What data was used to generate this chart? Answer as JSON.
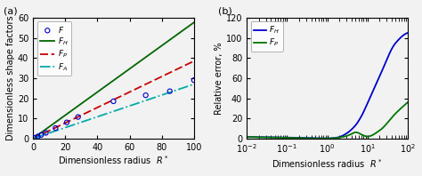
{
  "panel_a": {
    "title": "(a)",
    "xlabel": "Dimensionless radius  $R^*$",
    "ylabel": "Dimensionless shape factors",
    "xlim": [
      0,
      100
    ],
    "ylim": [
      0,
      60
    ],
    "yticks": [
      0,
      10,
      20,
      30,
      40,
      50,
      60
    ],
    "xticks": [
      0,
      20,
      40,
      60,
      80,
      100
    ],
    "F_color": "#0000cc",
    "FH_color": "#006600",
    "FP_color": "#cc0000",
    "FA_color": "#00aaaa",
    "FH_slope": 0.577,
    "FP_slope": 0.385,
    "FA_slope": 0.27,
    "scatter_x": [
      1,
      3,
      5,
      8,
      14,
      21,
      28,
      50,
      70,
      85,
      100
    ],
    "scatter_y": [
      0.38,
      1.0,
      1.7,
      2.8,
      5.2,
      8.0,
      10.7,
      18.5,
      21.5,
      23.5,
      29.0
    ]
  },
  "panel_b": {
    "title": "(b)",
    "xlabel": "Dimensionless radius  $R^*$",
    "ylabel": "Relative error, %",
    "xlim_log": [
      -2,
      2
    ],
    "ylim": [
      0,
      120
    ],
    "yticks": [
      0,
      20,
      40,
      60,
      80,
      100,
      120
    ],
    "FH_color": "#0000cc",
    "FP_color": "#007700",
    "FH_x": [
      0.01,
      0.02,
      0.05,
      0.1,
      0.2,
      0.5,
      0.8,
      1.0,
      1.5,
      2.0,
      3.0,
      5.0,
      7.0,
      10.0,
      20.0,
      50.0,
      100.0
    ],
    "FH_y": [
      1.5,
      1.4,
      1.2,
      1.0,
      0.7,
      0.3,
      0.15,
      0.1,
      0.5,
      1.5,
      5.0,
      13.0,
      22.0,
      35.0,
      62.0,
      95.0,
      105.0
    ],
    "FP_x": [
      0.01,
      0.02,
      0.05,
      0.1,
      0.2,
      0.5,
      0.8,
      1.0,
      1.5,
      2.0,
      3.0,
      4.0,
      5.0,
      6.0,
      7.0,
      10.0,
      20.0,
      50.0,
      100.0
    ],
    "FP_y": [
      1.5,
      1.3,
      1.0,
      0.7,
      0.4,
      0.1,
      0.05,
      0.1,
      0.4,
      1.0,
      2.5,
      4.5,
      6.2,
      5.5,
      4.0,
      2.0,
      8.0,
      25.0,
      36.0
    ]
  },
  "bg_color": "#f2f2f2",
  "fontsize": 7
}
